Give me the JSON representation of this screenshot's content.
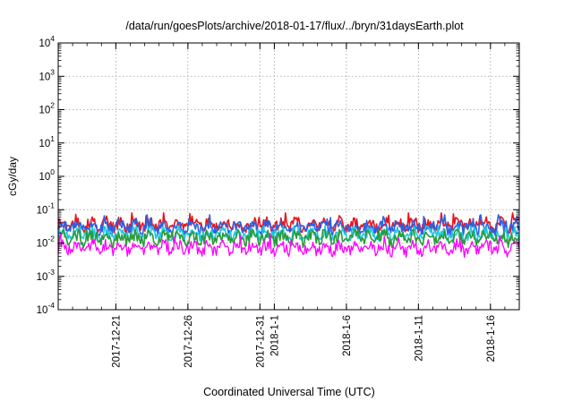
{
  "chart_data": {
    "type": "line",
    "title": "/data/run/goesPlots/archive/2018-01-17/flux/../bryn/31daysEarth.plot",
    "xlabel": "Coordinated Universal Time (UTC)",
    "ylabel": "cGy/day",
    "yscale": "log",
    "ylim": [
      0.0001,
      10000
    ],
    "y_ticks": [
      {
        "base": "10",
        "exp": "-4",
        "value": 0.0001
      },
      {
        "base": "10",
        "exp": "-3",
        "value": 0.001
      },
      {
        "base": "10",
        "exp": "-2",
        "value": 0.01
      },
      {
        "base": "10",
        "exp": "-1",
        "value": 0.1
      },
      {
        "base": "10",
        "exp": "0",
        "value": 1
      },
      {
        "base": "10",
        "exp": "1",
        "value": 10
      },
      {
        "base": "10",
        "exp": "2",
        "value": 100
      },
      {
        "base": "10",
        "exp": "3",
        "value": 1000
      },
      {
        "base": "10",
        "exp": "4",
        "value": 10000
      }
    ],
    "xlim": [
      "2017-12-17",
      "2018-01-18"
    ],
    "x_ticks": [
      {
        "date": "2017-12-21",
        "label": "2017-12-21"
      },
      {
        "date": "2017-12-26",
        "label": "2017-12-26"
      },
      {
        "date": "2017-12-31",
        "label": "2017-12-31"
      },
      {
        "date": "2018-01-01",
        "label": "2018-1-1"
      },
      {
        "date": "2018-01-06",
        "label": "2018-1-6"
      },
      {
        "date": "2018-01-11",
        "label": "2018-1-11"
      },
      {
        "date": "2018-01-16",
        "label": "2018-1-16"
      }
    ],
    "grid": true,
    "legend": "none",
    "series": [
      {
        "color": "#e8141e",
        "typical": 0.035,
        "min": 0.02,
        "max": 0.08
      },
      {
        "color": "#2a62e6",
        "typical": 0.03,
        "min": 0.017,
        "max": 0.07
      },
      {
        "color": "#20c8e0",
        "typical": 0.018,
        "min": 0.012,
        "max": 0.032
      },
      {
        "color": "#2a9a3a",
        "typical": 0.014,
        "min": 0.007,
        "max": 0.025
      },
      {
        "color": "#ff00ff",
        "typical": 0.007,
        "min": 0.0032,
        "max": 0.02
      }
    ]
  }
}
